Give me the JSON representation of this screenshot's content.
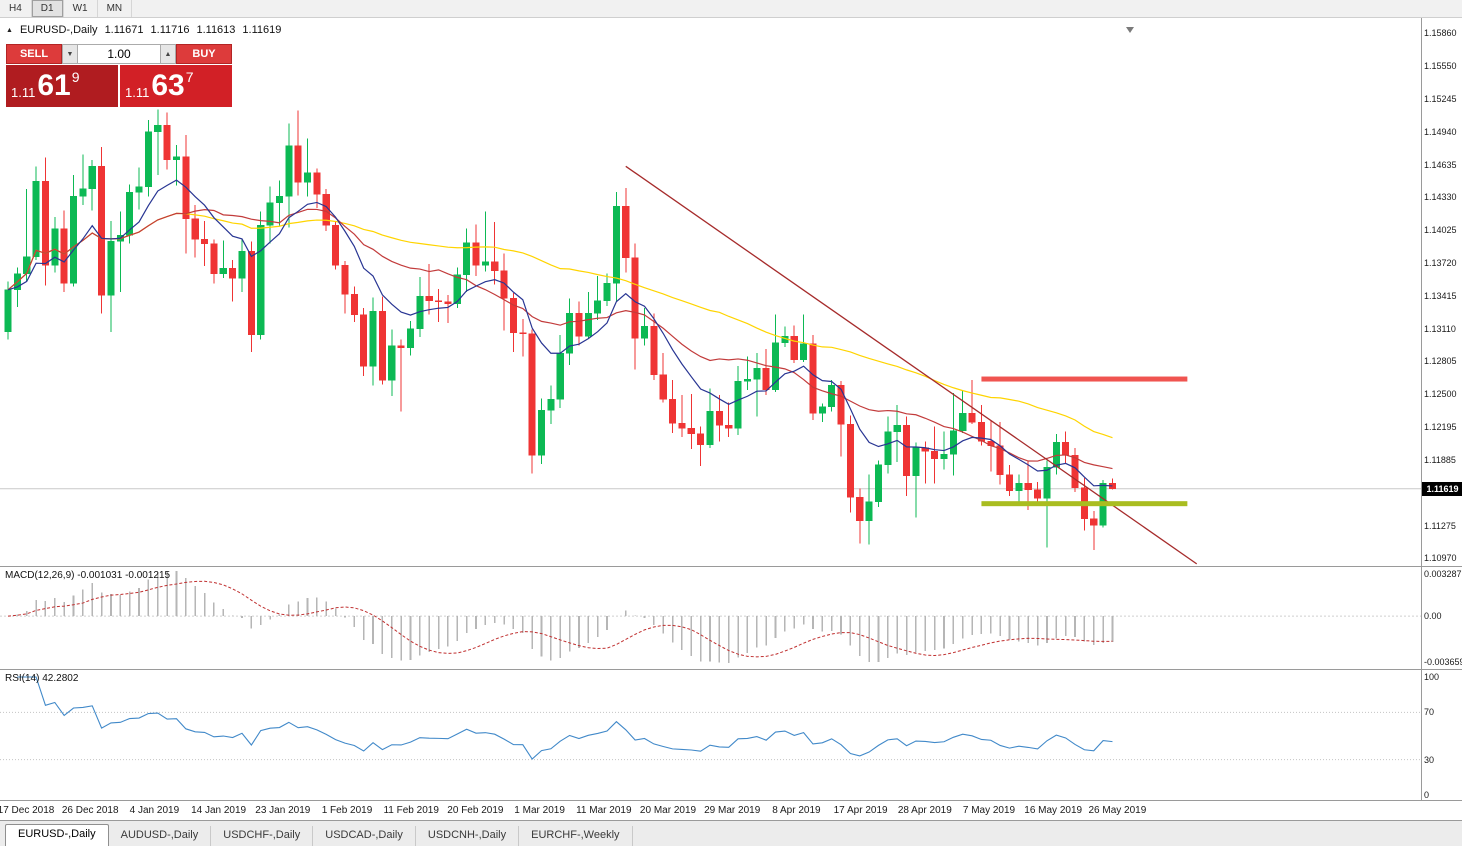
{
  "toolbar": {
    "timeframes": [
      {
        "label": "H4",
        "active": false
      },
      {
        "label": "D1",
        "active": true
      },
      {
        "label": "W1",
        "active": false
      },
      {
        "label": "MN",
        "active": false
      }
    ]
  },
  "chart_header": {
    "symbol": "EURUSD-,Daily",
    "open": "1.11671",
    "high": "1.11716",
    "low": "1.11613",
    "close": "1.11619"
  },
  "icons": {
    "collapse_triangle": "▲",
    "volume_up": "▲",
    "volume_down": "▼"
  },
  "trade_panel": {
    "sell_label": "SELL",
    "buy_label": "BUY",
    "volume": "1.00",
    "sell_price": {
      "prefix": "1.11",
      "big": "61",
      "sup": "9"
    },
    "buy_price": {
      "prefix": "1.11",
      "big": "63",
      "sup": "7"
    }
  },
  "panes": {
    "macd": {
      "label": "MACD(12,26,9) -0.001031 -0.001215",
      "axis_top": "0.003287",
      "axis_zero": "0.00",
      "axis_bottom": "-0.003659"
    },
    "rsi": {
      "label": "RSI(14) 42.2802",
      "levels": [
        100,
        70,
        30,
        0
      ]
    }
  },
  "tabs": [
    {
      "label": "EURUSD-,Daily",
      "active": true
    },
    {
      "label": "AUDUSD-,Daily",
      "active": false
    },
    {
      "label": "USDCHF-,Daily",
      "active": false
    },
    {
      "label": "USDCAD-,Daily",
      "active": false
    },
    {
      "label": "USDCNH-,Daily",
      "active": false
    },
    {
      "label": "EURCHF-,Weekly",
      "active": false
    }
  ],
  "chart_data": {
    "type": "candlestick",
    "symbol": "EURUSD-",
    "timeframe": "Daily",
    "title": "EURUSD-,Daily",
    "price_scale": {
      "top": 1.16,
      "bottom": 1.109
    },
    "price_axis_labels": [
      "1.15860",
      "1.15550",
      "1.15245",
      "1.14940",
      "1.14635",
      "1.14330",
      "1.14025",
      "1.13720",
      "1.13415",
      "1.13110",
      "1.12805",
      "1.12500",
      "1.12195",
      "1.11885",
      "1.11275",
      "1.10970"
    ],
    "current_price": 1.11619,
    "current_price_label": "1.11619",
    "date_labels": [
      "17 Dec 2018",
      "26 Dec 2018",
      "4 Jan 2019",
      "14 Jan 2019",
      "23 Jan 2019",
      "1 Feb 2019",
      "11 Feb 2019",
      "20 Feb 2019",
      "1 Mar 2019",
      "11 Mar 2019",
      "20 Mar 2019",
      "29 Mar 2019",
      "8 Apr 2019",
      "17 Apr 2019",
      "28 Apr 2019",
      "7 May 2019",
      "16 May 2019",
      "26 May 2019"
    ],
    "candles": [
      [
        1.1308,
        1.1355,
        1.1301,
        1.1347
      ],
      [
        1.1347,
        1.1368,
        1.1331,
        1.1362
      ],
      [
        1.1362,
        1.1441,
        1.1355,
        1.1378
      ],
      [
        1.1378,
        1.1462,
        1.1375,
        1.1448
      ],
      [
        1.1448,
        1.147,
        1.1351,
        1.137
      ],
      [
        1.137,
        1.1415,
        1.1363,
        1.1404
      ],
      [
        1.1404,
        1.1421,
        1.1345,
        1.1353
      ],
      [
        1.1353,
        1.1454,
        1.135,
        1.1434
      ],
      [
        1.1434,
        1.1473,
        1.1426,
        1.1441
      ],
      [
        1.1441,
        1.1468,
        1.1421,
        1.1462
      ],
      [
        1.1462,
        1.148,
        1.1325,
        1.1342
      ],
      [
        1.1342,
        1.1411,
        1.1308,
        1.1392
      ],
      [
        1.1392,
        1.142,
        1.1345,
        1.1398
      ],
      [
        1.1398,
        1.1445,
        1.139,
        1.1438
      ],
      [
        1.1438,
        1.1461,
        1.1422,
        1.1443
      ],
      [
        1.1443,
        1.1505,
        1.1434,
        1.1494
      ],
      [
        1.1494,
        1.1515,
        1.1454,
        1.15
      ],
      [
        1.15,
        1.1512,
        1.1459,
        1.1468
      ],
      [
        1.1468,
        1.1482,
        1.1444,
        1.1471
      ],
      [
        1.1471,
        1.1491,
        1.1381,
        1.1413
      ],
      [
        1.1413,
        1.1426,
        1.1377,
        1.1394
      ],
      [
        1.1394,
        1.1411,
        1.1369,
        1.139
      ],
      [
        1.139,
        1.1394,
        1.1353,
        1.1362
      ],
      [
        1.1362,
        1.1393,
        1.1358,
        1.1367
      ],
      [
        1.1367,
        1.1375,
        1.1336,
        1.1358
      ],
      [
        1.1358,
        1.1394,
        1.1345,
        1.1383
      ],
      [
        1.1383,
        1.1392,
        1.1289,
        1.1305
      ],
      [
        1.1305,
        1.142,
        1.1301,
        1.1407
      ],
      [
        1.1407,
        1.1443,
        1.139,
        1.1428
      ],
      [
        1.1428,
        1.1449,
        1.1407,
        1.1434
      ],
      [
        1.1434,
        1.1502,
        1.1405,
        1.1481
      ],
      [
        1.1481,
        1.1514,
        1.1435,
        1.1447
      ],
      [
        1.1447,
        1.1488,
        1.1434,
        1.1456
      ],
      [
        1.1456,
        1.146,
        1.1423,
        1.1436
      ],
      [
        1.1436,
        1.1441,
        1.1402,
        1.1407
      ],
      [
        1.1407,
        1.141,
        1.1366,
        1.137
      ],
      [
        1.137,
        1.1374,
        1.1325,
        1.1343
      ],
      [
        1.1343,
        1.135,
        1.1317,
        1.1324
      ],
      [
        1.1324,
        1.133,
        1.1267,
        1.1276
      ],
      [
        1.1276,
        1.134,
        1.1258,
        1.1327
      ],
      [
        1.1327,
        1.1341,
        1.1259,
        1.1263
      ],
      [
        1.1263,
        1.131,
        1.1248,
        1.1295
      ],
      [
        1.1295,
        1.1301,
        1.1234,
        1.1293
      ],
      [
        1.1293,
        1.1318,
        1.1286,
        1.1311
      ],
      [
        1.1311,
        1.1359,
        1.1303,
        1.1341
      ],
      [
        1.1341,
        1.1371,
        1.1324,
        1.1337
      ],
      [
        1.1337,
        1.1348,
        1.1317,
        1.1336
      ],
      [
        1.1336,
        1.1342,
        1.1316,
        1.1334
      ],
      [
        1.1334,
        1.1368,
        1.133,
        1.1361
      ],
      [
        1.1361,
        1.1404,
        1.1345,
        1.1391
      ],
      [
        1.1391,
        1.1408,
        1.136,
        1.137
      ],
      [
        1.137,
        1.142,
        1.1364,
        1.1373
      ],
      [
        1.1373,
        1.141,
        1.1352,
        1.1365
      ],
      [
        1.1365,
        1.1381,
        1.1309,
        1.1339
      ],
      [
        1.1339,
        1.1344,
        1.1289,
        1.1307
      ],
      [
        1.1307,
        1.132,
        1.1285,
        1.1306
      ],
      [
        1.1306,
        1.131,
        1.1176,
        1.1193
      ],
      [
        1.1193,
        1.1246,
        1.1185,
        1.1235
      ],
      [
        1.1235,
        1.1258,
        1.1222,
        1.1245
      ],
      [
        1.1245,
        1.1305,
        1.1237,
        1.1288
      ],
      [
        1.1288,
        1.1339,
        1.1277,
        1.1325
      ],
      [
        1.1325,
        1.1336,
        1.1295,
        1.1304
      ],
      [
        1.1304,
        1.1345,
        1.1302,
        1.1325
      ],
      [
        1.1325,
        1.136,
        1.1319,
        1.1337
      ],
      [
        1.1337,
        1.1362,
        1.1332,
        1.1353
      ],
      [
        1.1353,
        1.1438,
        1.1336,
        1.1425
      ],
      [
        1.1425,
        1.1442,
        1.1363,
        1.1377
      ],
      [
        1.1377,
        1.139,
        1.1273,
        1.1302
      ],
      [
        1.1302,
        1.133,
        1.1295,
        1.1313
      ],
      [
        1.1313,
        1.1325,
        1.1263,
        1.1268
      ],
      [
        1.1268,
        1.1288,
        1.1242,
        1.1245
      ],
      [
        1.1245,
        1.1263,
        1.1214,
        1.1223
      ],
      [
        1.1223,
        1.1249,
        1.121,
        1.1218
      ],
      [
        1.1218,
        1.125,
        1.1199,
        1.1213
      ],
      [
        1.1213,
        1.122,
        1.1183,
        1.1203
      ],
      [
        1.1203,
        1.1255,
        1.12,
        1.1234
      ],
      [
        1.1234,
        1.1249,
        1.1206,
        1.1221
      ],
      [
        1.1221,
        1.1242,
        1.121,
        1.1218
      ],
      [
        1.1218,
        1.1276,
        1.1212,
        1.1262
      ],
      [
        1.1262,
        1.1285,
        1.1254,
        1.1264
      ],
      [
        1.1264,
        1.1288,
        1.1229,
        1.1274
      ],
      [
        1.1274,
        1.1292,
        1.1249,
        1.1254
      ],
      [
        1.1254,
        1.1324,
        1.1252,
        1.1298
      ],
      [
        1.1298,
        1.1313,
        1.1294,
        1.1304
      ],
      [
        1.1304,
        1.1314,
        1.1279,
        1.1282
      ],
      [
        1.1282,
        1.1324,
        1.128,
        1.1297
      ],
      [
        1.1297,
        1.1305,
        1.1226,
        1.1232
      ],
      [
        1.1232,
        1.1241,
        1.1224,
        1.1238
      ],
      [
        1.1238,
        1.1263,
        1.1234,
        1.1258
      ],
      [
        1.1258,
        1.1262,
        1.1192,
        1.1222
      ],
      [
        1.1222,
        1.123,
        1.114,
        1.1154
      ],
      [
        1.1154,
        1.1162,
        1.1111,
        1.1132
      ],
      [
        1.1132,
        1.1175,
        1.111,
        1.115
      ],
      [
        1.115,
        1.1188,
        1.1145,
        1.1184
      ],
      [
        1.1184,
        1.1229,
        1.1176,
        1.1215
      ],
      [
        1.1215,
        1.124,
        1.1187,
        1.1221
      ],
      [
        1.1221,
        1.1229,
        1.1155,
        1.1174
      ],
      [
        1.1174,
        1.1205,
        1.1135,
        1.12
      ],
      [
        1.12,
        1.1206,
        1.1167,
        1.1197
      ],
      [
        1.1197,
        1.122,
        1.1167,
        1.119
      ],
      [
        1.119,
        1.1215,
        1.118,
        1.1194
      ],
      [
        1.1194,
        1.1251,
        1.1174,
        1.1216
      ],
      [
        1.1216,
        1.1254,
        1.1214,
        1.1232
      ],
      [
        1.1232,
        1.1263,
        1.1222,
        1.1224
      ],
      [
        1.1224,
        1.124,
        1.1202,
        1.1206
      ],
      [
        1.1206,
        1.1226,
        1.1178,
        1.1202
      ],
      [
        1.1202,
        1.1224,
        1.1166,
        1.1175
      ],
      [
        1.1175,
        1.1184,
        1.1155,
        1.116
      ],
      [
        1.116,
        1.1175,
        1.115,
        1.1167
      ],
      [
        1.1167,
        1.1188,
        1.1142,
        1.1161
      ],
      [
        1.1161,
        1.1168,
        1.1146,
        1.1153
      ],
      [
        1.1153,
        1.1188,
        1.1107,
        1.1182
      ],
      [
        1.1182,
        1.1213,
        1.1175,
        1.1205
      ],
      [
        1.1205,
        1.1215,
        1.1186,
        1.1193
      ],
      [
        1.1193,
        1.12,
        1.1159,
        1.1163
      ],
      [
        1.1163,
        1.1172,
        1.1123,
        1.1134
      ],
      [
        1.1134,
        1.1141,
        1.1105,
        1.1128
      ],
      [
        1.1128,
        1.117,
        1.1126,
        1.1167
      ],
      [
        1.11671,
        1.11716,
        1.11613,
        1.11619
      ]
    ],
    "indicators": {
      "ma_fast": {
        "type": "EMA",
        "period": 10,
        "color": "#283593"
      },
      "ma_mid": {
        "type": "SMA",
        "period": 20,
        "color": "#c23b3b"
      },
      "ma_slow": {
        "type": "SMA",
        "period": 50,
        "color": "#ffd400"
      },
      "macd": {
        "fast": 12,
        "slow": 26,
        "signal": 9,
        "value": "-0.001031",
        "signal_value": "-0.001215",
        "hist_color": "#b6b6b6",
        "signal_color": "#c03030"
      },
      "rsi": {
        "period": 14,
        "value": "42.2802",
        "color": "#4189c9"
      }
    },
    "drawings": {
      "trendline": {
        "from_index": 66,
        "from_price": 1.1462,
        "to_index": 127,
        "to_price": 1.1092,
        "color": "#a62b2b"
      },
      "resistance": {
        "from_index": 104,
        "to_index": 126,
        "price": 1.1264,
        "color": "#f05450",
        "thickness": 5
      },
      "support": {
        "from_index": 104,
        "to_index": 126,
        "price": 1.1148,
        "color": "#a9bd20",
        "thickness": 5
      }
    },
    "colors": {
      "up": "#0cb954",
      "down": "#ef3434",
      "background": "#ffffff",
      "current_price_line": "#c9c9c9"
    }
  }
}
